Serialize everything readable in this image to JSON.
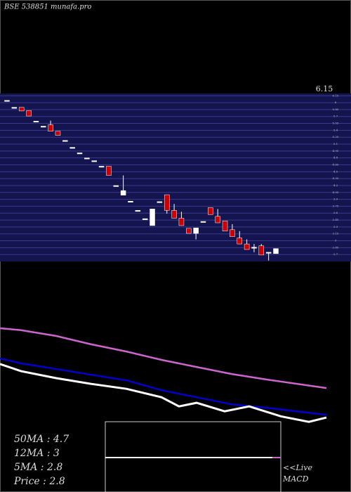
{
  "chart_data": [
    {
      "type": "candlestick",
      "title": "BSE 538851 munafa.pro",
      "ylim": [
        2.55,
        6.2
      ],
      "yticks": [
        2.7,
        2.85,
        3,
        3.15,
        3.3,
        3.45,
        3.6,
        3.75,
        3.9,
        4.05,
        4.2,
        4.35,
        4.5,
        4.65,
        4.8,
        4.95,
        5.1,
        5.25,
        5.4,
        5.55,
        5.7,
        5.85,
        6,
        6.15
      ],
      "up_color": "#ffffff",
      "down_color": "#cc0000",
      "open": [
        6.05,
        5.9,
        5.9,
        5.83,
        5.6,
        5.49,
        5.52,
        5.38,
        5.18,
        5.03,
        4.91,
        4.8,
        4.74,
        4.62,
        4.62,
        4.2,
        3.99,
        3.86,
        3.66,
        3.48,
        3.33,
        3.85,
        4.0,
        3.66,
        3.49,
        3.27,
        3.16,
        3.42,
        3.72,
        3.53,
        3.43,
        3.24,
        3.06,
        2.93,
        2.86,
        2.89,
        2.75,
        2.72
      ],
      "high": [
        6.05,
        5.9,
        5.9,
        5.83,
        5.6,
        5.49,
        5.61,
        5.38,
        5.18,
        5.03,
        4.91,
        4.8,
        4.74,
        4.62,
        4.62,
        4.2,
        4.42,
        3.86,
        3.66,
        3.48,
        3.69,
        3.85,
        4.0,
        3.8,
        3.63,
        3.27,
        3.28,
        3.42,
        3.72,
        3.69,
        3.43,
        3.36,
        3.21,
        3.03,
        2.93,
        2.93,
        2.75,
        2.83
      ],
      "low": [
        6.05,
        5.9,
        5.82,
        5.71,
        5.6,
        5.49,
        5.38,
        5.29,
        5.18,
        5.03,
        4.91,
        4.8,
        4.74,
        4.62,
        4.42,
        4.2,
        3.99,
        3.86,
        3.66,
        3.48,
        3.33,
        3.85,
        3.59,
        3.49,
        3.33,
        3.16,
        3.03,
        3.42,
        3.57,
        3.39,
        3.21,
        3.09,
        2.93,
        2.81,
        2.75,
        2.69,
        2.57,
        2.72
      ],
      "close": [
        6.05,
        5.9,
        5.82,
        5.71,
        5.6,
        5.49,
        5.38,
        5.29,
        5.18,
        5.03,
        4.91,
        4.8,
        4.74,
        4.62,
        4.42,
        4.2,
        4.09,
        3.86,
        3.66,
        3.48,
        3.69,
        3.85,
        3.66,
        3.49,
        3.33,
        3.16,
        3.28,
        3.42,
        3.57,
        3.39,
        3.21,
        3.09,
        2.93,
        2.81,
        2.86,
        2.69,
        2.75,
        2.83
      ]
    },
    {
      "type": "line",
      "ylim": [
        -2,
        12.5
      ],
      "xlim": [
        0,
        50
      ],
      "series": [
        {
          "name": "50MA",
          "color": "#cc66cc",
          "x": [
            0,
            3,
            8,
            13,
            18,
            23,
            28,
            33,
            38,
            46.5
          ],
          "values": [
            8.56,
            8.43,
            8.06,
            7.52,
            7.06,
            6.52,
            6.06,
            5.61,
            5.25,
            4.7
          ]
        },
        {
          "name": "12MA",
          "color": "#0000cc",
          "x": [
            0,
            3,
            8,
            13,
            18,
            23,
            28,
            33,
            38,
            46.5
          ],
          "values": [
            6.61,
            6.29,
            5.93,
            5.56,
            5.2,
            4.56,
            4.11,
            3.65,
            3.43,
            2.97
          ]
        },
        {
          "name": "5MA",
          "color": "#ffffff",
          "x": [
            0,
            3,
            8,
            13,
            18,
            23,
            25.5,
            28,
            32,
            35.5,
            40,
            44,
            46.5
          ],
          "values": [
            6.25,
            5.79,
            5.34,
            4.97,
            4.65,
            4.11,
            3.52,
            3.75,
            3.2,
            3.52,
            2.88,
            2.52,
            2.8
          ]
        }
      ],
      "legend": [
        "50MA : 4.7",
        "12MA : 3",
        "5MA : 2.8",
        "Price   : 2.8"
      ],
      "live_label": "<<Live",
      "indicator_label": "MACD"
    }
  ]
}
